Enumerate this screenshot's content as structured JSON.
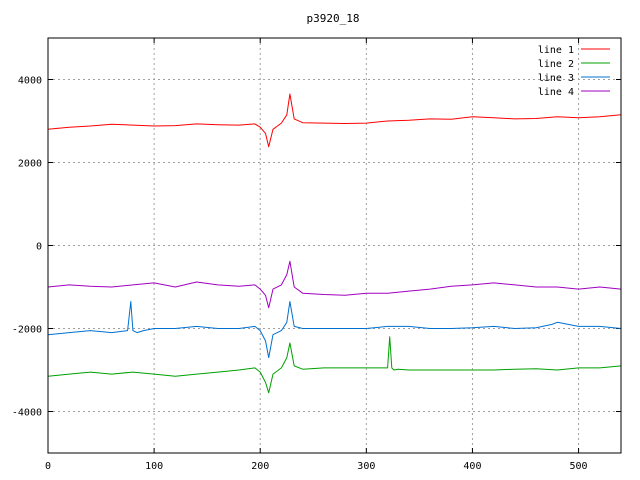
{
  "chart_data": {
    "type": "line",
    "title": "p3920_18",
    "xlabel": "",
    "ylabel": "",
    "xlim": [
      0,
      540
    ],
    "ylim": [
      -5000,
      5000
    ],
    "xticks": [
      0,
      100,
      200,
      300,
      400,
      500
    ],
    "yticks": [
      -4000,
      -2000,
      0,
      2000,
      4000
    ],
    "grid": true,
    "legend_position": "top-right",
    "series": [
      {
        "name": "line 1",
        "color": "#ff0000",
        "x": [
          0,
          20,
          40,
          60,
          80,
          100,
          120,
          140,
          160,
          180,
          195,
          200,
          205,
          208,
          212,
          220,
          225,
          228,
          232,
          240,
          260,
          280,
          300,
          320,
          340,
          360,
          380,
          400,
          420,
          440,
          460,
          480,
          500,
          520,
          540
        ],
        "values": [
          2800,
          2850,
          2880,
          2920,
          2900,
          2880,
          2890,
          2930,
          2910,
          2900,
          2930,
          2850,
          2700,
          2380,
          2800,
          2950,
          3150,
          3650,
          3050,
          2960,
          2950,
          2940,
          2950,
          3000,
          3020,
          3050,
          3040,
          3100,
          3080,
          3050,
          3060,
          3100,
          3080,
          3100,
          3150
        ]
      },
      {
        "name": "line 2",
        "color": "#00a000",
        "x": [
          0,
          20,
          40,
          60,
          80,
          100,
          120,
          140,
          160,
          180,
          195,
          200,
          205,
          208,
          212,
          220,
          225,
          228,
          232,
          240,
          260,
          280,
          300,
          320,
          322,
          324,
          326,
          330,
          340,
          360,
          380,
          400,
          420,
          440,
          460,
          480,
          500,
          520,
          540
        ],
        "values": [
          -3150,
          -3100,
          -3050,
          -3100,
          -3050,
          -3100,
          -3150,
          -3100,
          -3050,
          -3000,
          -2950,
          -3050,
          -3300,
          -3550,
          -3100,
          -2950,
          -2700,
          -2350,
          -2900,
          -2980,
          -2950,
          -2950,
          -2950,
          -2950,
          -2200,
          -2950,
          -3000,
          -2980,
          -3000,
          -3000,
          -3000,
          -3000,
          -3000,
          -2980,
          -2970,
          -3000,
          -2950,
          -2950,
          -2900
        ]
      },
      {
        "name": "line 3",
        "color": "#0070d0",
        "x": [
          0,
          20,
          40,
          60,
          75,
          78,
          80,
          84,
          90,
          100,
          120,
          140,
          160,
          180,
          195,
          200,
          205,
          208,
          212,
          220,
          225,
          228,
          232,
          240,
          260,
          280,
          300,
          320,
          340,
          360,
          380,
          400,
          420,
          440,
          460,
          475,
          480,
          500,
          520,
          540
        ],
        "values": [
          -2150,
          -2100,
          -2050,
          -2100,
          -2050,
          -1350,
          -2050,
          -2100,
          -2050,
          -2000,
          -2000,
          -1950,
          -2000,
          -2000,
          -1950,
          -2050,
          -2300,
          -2700,
          -2150,
          -2050,
          -1850,
          -1350,
          -1950,
          -2000,
          -2000,
          -2000,
          -2000,
          -1950,
          -1950,
          -2000,
          -2000,
          -1980,
          -1950,
          -2000,
          -1980,
          -1900,
          -1850,
          -1950,
          -1950,
          -2000
        ]
      },
      {
        "name": "line 4",
        "color": "#a000c0",
        "x": [
          0,
          20,
          40,
          60,
          80,
          100,
          120,
          140,
          160,
          180,
          195,
          200,
          205,
          208,
          212,
          220,
          225,
          228,
          232,
          240,
          260,
          280,
          300,
          320,
          340,
          360,
          380,
          400,
          420,
          440,
          460,
          480,
          500,
          520,
          540
        ],
        "values": [
          -1000,
          -950,
          -980,
          -1000,
          -950,
          -900,
          -1000,
          -880,
          -950,
          -980,
          -950,
          -1050,
          -1200,
          -1500,
          -1050,
          -950,
          -700,
          -380,
          -1000,
          -1150,
          -1180,
          -1200,
          -1150,
          -1150,
          -1100,
          -1050,
          -980,
          -950,
          -900,
          -950,
          -1000,
          -1000,
          -1050,
          -1000,
          -1050
        ]
      }
    ]
  }
}
